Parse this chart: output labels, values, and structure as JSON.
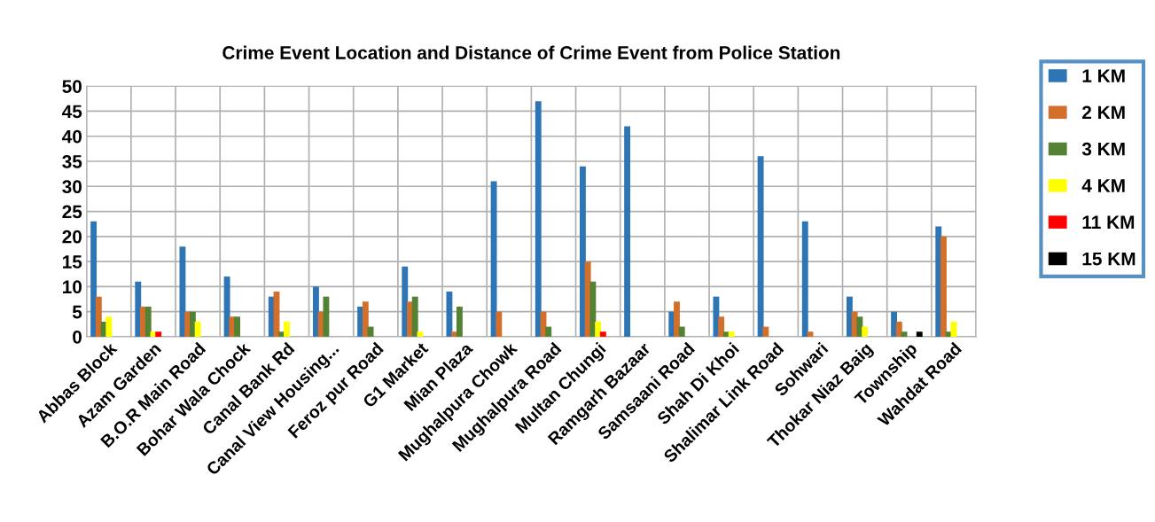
{
  "chart_data": {
    "type": "bar",
    "title": "Crime Event Location and Distance of Crime Event from Police Station",
    "categories": [
      "Abbas Block",
      "Azam Garden",
      "B.O.R Main Road",
      "Bohar Wala Chock",
      "Canal Bank Rd",
      "Canal View Housing...",
      "Feroz pur Road",
      "G1 Market",
      "Mian Plaza",
      "Mughalpura Chowk",
      "Mughalpura Road",
      "Multan Chungi",
      "Ramgarh Bazaar",
      "Samsaani Road",
      "Shah Di Khoi",
      "Shalimar Link Road",
      "Sohwari",
      "Thokar Niaz Baig",
      "Township",
      "Wahdat Road"
    ],
    "series": [
      {
        "name": "1 KM",
        "color": "#2e75b6",
        "values": [
          23,
          11,
          18,
          12,
          8,
          10,
          6,
          14,
          9,
          31,
          47,
          34,
          42,
          5,
          8,
          36,
          23,
          8,
          5,
          22
        ]
      },
      {
        "name": "2 KM",
        "color": "#d2702b",
        "values": [
          8,
          6,
          5,
          4,
          9,
          5,
          7,
          7,
          1,
          5,
          5,
          15,
          null,
          7,
          4,
          2,
          1,
          5,
          3,
          20
        ]
      },
      {
        "name": "3 KM",
        "color": "#548235",
        "values": [
          3,
          6,
          5,
          4,
          1,
          8,
          2,
          8,
          6,
          null,
          2,
          11,
          null,
          2,
          1,
          null,
          null,
          4,
          1,
          1
        ]
      },
      {
        "name": "4 KM",
        "color": "#ffff00",
        "values": [
          4,
          1,
          3,
          null,
          3,
          null,
          null,
          1,
          null,
          null,
          null,
          3,
          null,
          null,
          1,
          null,
          null,
          2,
          null,
          3
        ]
      },
      {
        "name": "11 KM",
        "color": "#ff0000",
        "values": [
          null,
          1,
          null,
          null,
          null,
          null,
          null,
          null,
          null,
          null,
          null,
          1,
          null,
          null,
          null,
          null,
          null,
          null,
          null,
          null
        ]
      },
      {
        "name": "15 KM",
        "color": "#000000",
        "values": [
          null,
          null,
          null,
          null,
          null,
          null,
          null,
          null,
          null,
          null,
          null,
          null,
          null,
          null,
          null,
          null,
          null,
          null,
          1,
          null
        ]
      }
    ],
    "ylim": [
      0,
      50
    ],
    "yticks": [
      0,
      5,
      10,
      15,
      20,
      25,
      30,
      35,
      40,
      45,
      50
    ],
    "grid": true,
    "legend": "top right"
  }
}
